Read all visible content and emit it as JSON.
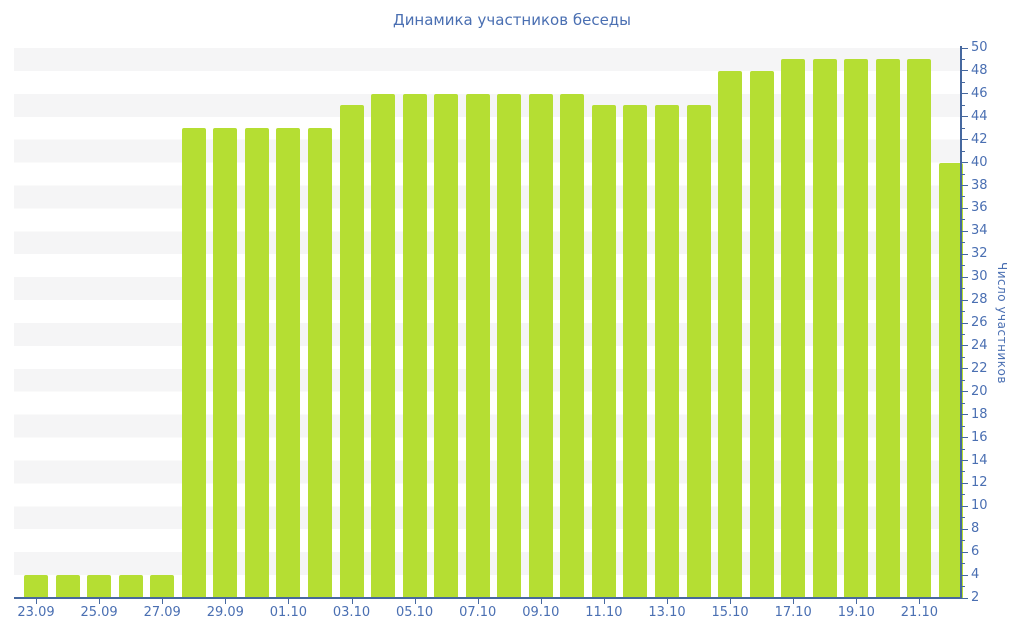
{
  "title": "Динамика участников беседы",
  "colors": {
    "bar": "#b5de33",
    "axis_line": "#46689f",
    "label_text": "#4a6fb2",
    "stripe": "#f5f5f6",
    "background": "#ffffff"
  },
  "chart_data": {
    "type": "bar",
    "title": "Динамика участников беседы",
    "xlabel": "",
    "ylabel": "Число участников",
    "categories": [
      "23.09",
      "24.09",
      "25.09",
      "26.09",
      "27.09",
      "28.09",
      "29.09",
      "30.09",
      "01.10",
      "02.10",
      "03.10",
      "04.10",
      "05.10",
      "06.10",
      "07.10",
      "08.10",
      "09.10",
      "10.10",
      "11.10",
      "12.10",
      "13.10",
      "14.10",
      "15.10",
      "16.10",
      "17.10",
      "18.10",
      "19.10",
      "20.10",
      "21.10",
      "22.10"
    ],
    "values": [
      4,
      4,
      4,
      4,
      4,
      43,
      43,
      43,
      43,
      43,
      45,
      46,
      46,
      46,
      46,
      46,
      46,
      46,
      45,
      45,
      45,
      45,
      48,
      48,
      49,
      49,
      49,
      49,
      49,
      40
    ],
    "x_tick_labels": [
      "23.09",
      "25.09",
      "27.09",
      "29.09",
      "01.10",
      "03.10",
      "05.10",
      "07.10",
      "09.10",
      "11.10",
      "13.10",
      "15.10",
      "17.10",
      "19.10",
      "21.10"
    ],
    "y_tick_labels": [
      "2",
      "4",
      "6",
      "8",
      "10",
      "12",
      "14",
      "16",
      "18",
      "20",
      "22",
      "24",
      "26",
      "28",
      "30",
      "32",
      "34",
      "36",
      "38",
      "40",
      "42",
      "44",
      "46",
      "48",
      "50"
    ],
    "ylim": [
      2,
      50
    ],
    "ytick_step": 2,
    "grid": "striped-horizontal-bands",
    "legend": "none",
    "bar_color": "#b5de33"
  }
}
